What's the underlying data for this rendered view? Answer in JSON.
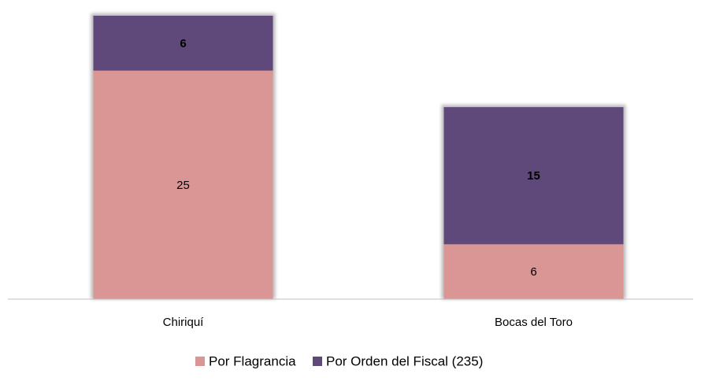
{
  "chart_data": {
    "type": "stacked_bar",
    "categories": [
      "Chiriquí",
      "Bocas del Toro"
    ],
    "series": [
      {
        "name": "Por Flagrancia",
        "color": "#d99694",
        "values": [
          25,
          6
        ]
      },
      {
        "name": "Por Orden del Fiscal (235)",
        "color": "#5f497a",
        "values": [
          6,
          15
        ]
      }
    ],
    "ylim": [
      0,
      31
    ]
  }
}
